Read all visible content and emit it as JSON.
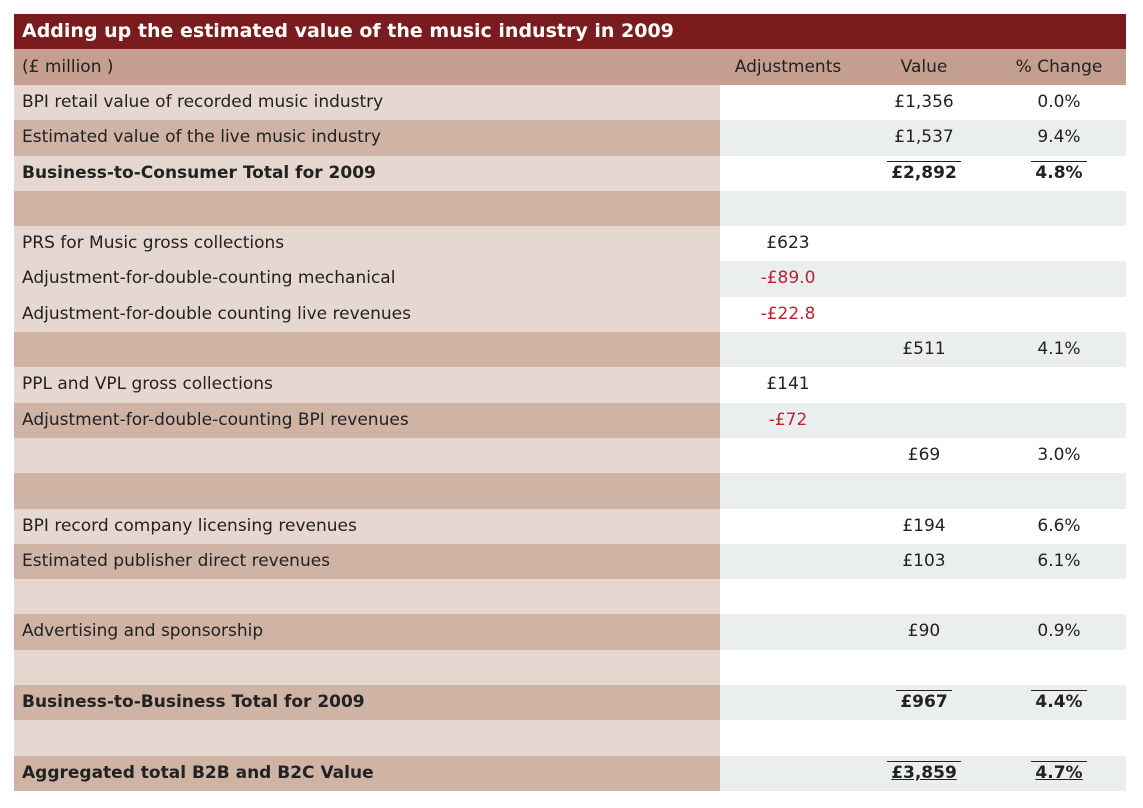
{
  "title": "Adding up the estimated value of the music industry in 2009",
  "header": {
    "unit": "(£ million )",
    "adjustments": "Adjustments",
    "value": "Value",
    "change": "% Change"
  },
  "rows": [
    {
      "label": "BPI retail value of recorded music industry",
      "adj": "",
      "value": "£1,356",
      "change": "0.0%"
    },
    {
      "label": "Estimated value of the live music industry",
      "adj": "",
      "value": "£1,537",
      "change": "9.4%"
    },
    {
      "label": "Business-to-Consumer Total for 2009",
      "adj": "",
      "value": "£2,892",
      "change": "4.8%"
    },
    {
      "label": "",
      "adj": "",
      "value": "",
      "change": ""
    },
    {
      "label": "PRS for Music gross collections",
      "adj": "£623",
      "value": "",
      "change": ""
    },
    {
      "label": "Adjustment-for-double-counting mechanical",
      "adj": "-£89.0",
      "value": "",
      "change": ""
    },
    {
      "label": "Adjustment-for-double counting live revenues",
      "adj": "-£22.8",
      "value": "",
      "change": ""
    },
    {
      "label": "",
      "adj": "",
      "value": "£511",
      "change": "4.1%"
    },
    {
      "label": "PPL and VPL gross collections",
      "adj": "£141",
      "value": "",
      "change": ""
    },
    {
      "label": "Adjustment-for-double-counting BPI revenues",
      "adj": "-£72",
      "value": "",
      "change": ""
    },
    {
      "label": "",
      "adj": "",
      "value": "£69",
      "change": "3.0%"
    },
    {
      "label": "",
      "adj": "",
      "value": "",
      "change": ""
    },
    {
      "label": "BPI record company licensing revenues",
      "adj": "",
      "value": "£194",
      "change": "6.6%"
    },
    {
      "label": "Estimated publisher direct revenues",
      "adj": "",
      "value": "£103",
      "change": "6.1%"
    },
    {
      "label": "",
      "adj": "",
      "value": "",
      "change": ""
    },
    {
      "label": "Advertising and sponsorship",
      "adj": "",
      "value": "£90",
      "change": "0.9%"
    },
    {
      "label": "",
      "adj": "",
      "value": "",
      "change": ""
    },
    {
      "label": "Business-to-Business Total for 2009",
      "adj": "",
      "value": "£967",
      "change": "4.4%"
    },
    {
      "label": "",
      "adj": "",
      "value": "",
      "change": ""
    },
    {
      "label": "Aggregated total B2B and B2C Value",
      "adj": "",
      "value": "£3,859",
      "change": "4.7%"
    }
  ],
  "colors": {
    "title_bg": "#7a1c1e",
    "header_bg": "#c49e8e",
    "negative": "#c0202f"
  }
}
